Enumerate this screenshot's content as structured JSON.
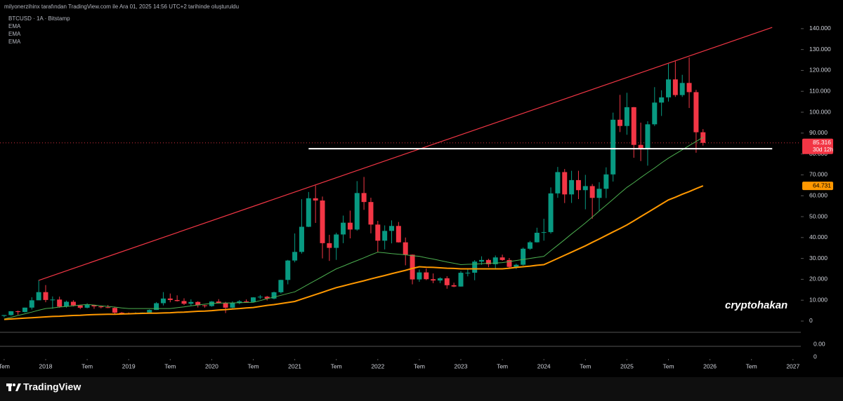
{
  "header": "milyonerzihinx tarafından TradingView.com ile Ara 01, 2025 14:56 UTC+2 tarihinde oluşturuldu",
  "footer_brand": "TradingView",
  "chart_data": {
    "type": "candlestick",
    "title": "BTCUSD · 1A · Bitstamp",
    "indicator_labels": [
      "EMA",
      "EMA",
      "EMA"
    ],
    "watermark": "cryptohakan",
    "up_color": "#089981",
    "down_color": "#f23645",
    "x": [
      "2017-07",
      "2017-08",
      "2017-09",
      "2017-10",
      "2017-11",
      "2017-12",
      "2018-01",
      "2018-02",
      "2018-03",
      "2018-04",
      "2018-05",
      "2018-06",
      "2018-07",
      "2018-08",
      "2018-09",
      "2018-10",
      "2018-11",
      "2018-12",
      "2019-01",
      "2019-02",
      "2019-03",
      "2019-04",
      "2019-05",
      "2019-06",
      "2019-07",
      "2019-08",
      "2019-09",
      "2019-10",
      "2019-11",
      "2019-12",
      "2020-01",
      "2020-02",
      "2020-03",
      "2020-04",
      "2020-05",
      "2020-06",
      "2020-07",
      "2020-08",
      "2020-09",
      "2020-10",
      "2020-11",
      "2020-12",
      "2021-01",
      "2021-02",
      "2021-03",
      "2021-04",
      "2021-05",
      "2021-06",
      "2021-07",
      "2021-08",
      "2021-09",
      "2021-10",
      "2021-11",
      "2021-12",
      "2022-01",
      "2022-02",
      "2022-03",
      "2022-04",
      "2022-05",
      "2022-06",
      "2022-07",
      "2022-08",
      "2022-09",
      "2022-10",
      "2022-11",
      "2022-12",
      "2023-01",
      "2023-02",
      "2023-03",
      "2023-04",
      "2023-05",
      "2023-06",
      "2023-07",
      "2023-08",
      "2023-09",
      "2023-10",
      "2023-11",
      "2023-12",
      "2024-01",
      "2024-02",
      "2024-03",
      "2024-04",
      "2024-05",
      "2024-06",
      "2024-07",
      "2024-08",
      "2024-09",
      "2024-10",
      "2024-11",
      "2024-12",
      "2025-01",
      "2025-02",
      "2025-03",
      "2025-04",
      "2025-05",
      "2025-06",
      "2025-07",
      "2025-08",
      "2025-09",
      "2025-10",
      "2025-11",
      "2025-12"
    ],
    "open": [
      2480,
      2870,
      4700,
      4340,
      6450,
      9950,
      13860,
      10100,
      10300,
      6920,
      9240,
      7500,
      6400,
      7730,
      7030,
      6630,
      6300,
      4020,
      3740,
      3460,
      3820,
      4100,
      5330,
      8560,
      10800,
      10080,
      9600,
      8300,
      9150,
      7550,
      7190,
      9350,
      8540,
      6420,
      8630,
      9450,
      9140,
      11350,
      11660,
      10780,
      13800,
      19700,
      28990,
      33110,
      45140,
      58800,
      57720,
      37300,
      35040,
      41460,
      47100,
      43820,
      61300,
      57000,
      46200,
      38480,
      43170,
      45540,
      37700,
      31800,
      19940,
      23300,
      20050,
      19430,
      20490,
      17170,
      16540,
      23130,
      23150,
      28470,
      29250,
      27220,
      30480,
      29230,
      25940,
      26960,
      34640,
      37720,
      42280,
      42580,
      61130,
      71330,
      60640,
      67490,
      62680,
      64620,
      58970,
      63330,
      70215,
      96400,
      93400,
      102400,
      84350,
      82550,
      94200,
      104600,
      107100,
      115700,
      108200,
      114000,
      109600,
      90400
    ],
    "high": [
      2900,
      4800,
      5000,
      6470,
      11400,
      19666,
      17250,
      11800,
      11700,
      9800,
      10000,
      7800,
      8500,
      7800,
      7410,
      7700,
      6600,
      4300,
      4120,
      4200,
      4130,
      5600,
      9090,
      13880,
      13200,
      12330,
      10900,
      10400,
      9500,
      7750,
      9580,
      10500,
      9200,
      9460,
      10070,
      10380,
      11440,
      12480,
      12070,
      14100,
      19800,
      29300,
      41950,
      58350,
      61800,
      64900,
      59600,
      41300,
      42300,
      50500,
      52900,
      67000,
      69000,
      59050,
      47990,
      45800,
      48200,
      47440,
      40000,
      31900,
      24670,
      25200,
      22800,
      21000,
      21480,
      18380,
      23960,
      25250,
      29190,
      31000,
      29840,
      31400,
      31800,
      30200,
      27490,
      35200,
      38400,
      44700,
      48970,
      64000,
      73800,
      72800,
      71950,
      71950,
      70000,
      65600,
      66500,
      73600,
      99800,
      108300,
      109300,
      102500,
      95000,
      95700,
      112000,
      110500,
      123200,
      124400,
      117900,
      126200,
      110700,
      91900
    ],
    "low": [
      1830,
      2580,
      2970,
      4110,
      5500,
      10700,
      9000,
      5900,
      6400,
      6430,
      7000,
      5760,
      6070,
      5880,
      6100,
      6200,
      3550,
      3120,
      3350,
      3380,
      3700,
      4080,
      5320,
      7480,
      9000,
      9360,
      7700,
      7300,
      6500,
      6430,
      6850,
      8450,
      3850,
      6160,
      8100,
      8900,
      8990,
      10520,
      9880,
      10400,
      13200,
      17600,
      28130,
      32300,
      45000,
      47000,
      30000,
      28800,
      29300,
      37300,
      39600,
      43300,
      53250,
      42000,
      32900,
      34300,
      37200,
      37600,
      26700,
      17600,
      18800,
      19600,
      18150,
      18200,
      15500,
      16250,
      16500,
      21400,
      19550,
      26950,
      25800,
      24800,
      28860,
      25400,
      24900,
      26550,
      34100,
      37600,
      38500,
      41880,
      59000,
      56500,
      56550,
      58400,
      53500,
      49000,
      52550,
      58900,
      66800,
      90500,
      89200,
      78200,
      76600,
      74400,
      93400,
      98200,
      105100,
      107300,
      107300,
      102000,
      80600,
      84000
    ],
    "close": [
      2870,
      4700,
      4340,
      6450,
      9950,
      13860,
      10100,
      10300,
      6920,
      9240,
      7500,
      6400,
      7730,
      7030,
      6630,
      6300,
      4020,
      3740,
      3460,
      3820,
      4100,
      5330,
      8560,
      10800,
      10080,
      9600,
      8300,
      9150,
      7550,
      7190,
      9350,
      8540,
      6420,
      8630,
      9450,
      9140,
      11350,
      11660,
      10780,
      13800,
      19700,
      28990,
      33110,
      45140,
      58800,
      57720,
      37300,
      35040,
      41460,
      47100,
      43820,
      61300,
      57000,
      46200,
      38480,
      43170,
      45540,
      37700,
      31800,
      19940,
      23300,
      20050,
      19430,
      20490,
      17170,
      16540,
      23130,
      23150,
      28470,
      29250,
      27220,
      30480,
      29230,
      25940,
      26960,
      34640,
      37720,
      42280,
      42580,
      61130,
      71330,
      60640,
      67490,
      62680,
      64620,
      58970,
      63330,
      70215,
      96400,
      93400,
      102400,
      84350,
      82550,
      94200,
      104600,
      107100,
      115700,
      108200,
      114000,
      109600,
      90400,
      85316
    ],
    "last_close_label": "85.316",
    "countdown": "30d 12h",
    "series": [
      {
        "color": "#4caf50",
        "values": [
          1000,
          1800,
          2700,
          3500,
          4300,
          5200,
          6000,
          6300,
          6700,
          7000,
          7300,
          7700,
          8000,
          7700,
          7300,
          7000,
          6700,
          6300,
          6000,
          6000,
          6000,
          6000,
          6000,
          6000,
          6000,
          6400,
          6800,
          7300,
          7700,
          8100,
          8500,
          8600,
          8700,
          8700,
          8800,
          8900,
          9000,
          9800,
          10700,
          11500,
          12300,
          13200,
          14000,
          15800,
          17700,
          19500,
          21300,
          23200,
          25000,
          26300,
          27700,
          29000,
          30300,
          31700,
          33000,
          32700,
          32300,
          32000,
          31700,
          31300,
          31000,
          30300,
          29700,
          29000,
          28300,
          27700,
          27000,
          27200,
          27300,
          27500,
          27700,
          27800,
          28000,
          28500,
          29000,
          29500,
          30000,
          30500,
          31000,
          33700,
          36300,
          39000,
          41700,
          44300,
          47000,
          49800,
          52700,
          55500,
          58300,
          61200,
          64000,
          66300,
          68700,
          71000,
          73300,
          75700,
          78000,
          80000,
          82000,
          84000,
          86000,
          88000
        ]
      },
      {
        "color": "#ff9800",
        "values": [
          800,
          1000,
          1200,
          1400,
          1600,
          1800,
          2000,
          2200,
          2300,
          2500,
          2700,
          2800,
          3000,
          3100,
          3200,
          3300,
          3300,
          3400,
          3500,
          3600,
          3700,
          3800,
          3800,
          3900,
          4000,
          4200,
          4300,
          4500,
          4700,
          4800,
          5000,
          5300,
          5500,
          5800,
          6000,
          6300,
          6500,
          7000,
          7500,
          7900,
          8400,
          8900,
          9400,
          10500,
          11600,
          12700,
          13800,
          14900,
          16000,
          16800,
          17700,
          18500,
          19300,
          20200,
          21000,
          21800,
          22700,
          23500,
          24300,
          25200,
          26000,
          25800,
          25700,
          25500,
          25300,
          25200,
          25000,
          25000,
          25000,
          25000,
          25000,
          25000,
          25000,
          25300,
          25700,
          26000,
          26300,
          26700,
          27000,
          28500,
          30000,
          31500,
          33000,
          34500,
          36000,
          37700,
          39300,
          41000,
          42700,
          44300,
          46000,
          48000,
          50000,
          52000,
          54000,
          56000,
          58000,
          59300,
          60700,
          62000,
          63400,
          64731
        ],
        "last_label": "64.731"
      }
    ],
    "lines": [
      {
        "color": "#f23645",
        "x": [
          "2017-12",
          "2026-10"
        ],
        "y": [
          19500,
          140600
        ]
      },
      {
        "color": "#ffffff",
        "x": [
          "2021-03",
          "2026-10"
        ],
        "y": [
          82500,
          82500
        ]
      }
    ],
    "ylim": [
      -4700,
      147000
    ],
    "yticks": [
      0,
      {
        "value": 10000,
        "label": "10.000"
      },
      {
        "value": 20000,
        "label": "20.000"
      },
      {
        "value": 30000,
        "label": "30.000"
      },
      {
        "value": 40000,
        "label": "40.000"
      },
      {
        "value": 50000,
        "label": "50.000"
      },
      {
        "value": 60000,
        "label": "60.000"
      },
      {
        "value": 70000,
        "label": "70.000"
      },
      {
        "value": 80000,
        "label": "80.000"
      },
      {
        "value": 90000,
        "label": "90.000"
      },
      {
        "value": 100000,
        "label": "100.000"
      },
      {
        "value": 110000,
        "label": "110.000"
      },
      {
        "value": 120000,
        "label": "120.000"
      },
      {
        "value": 130000,
        "label": "130.000"
      },
      {
        "value": 140000,
        "label": "140.000"
      }
    ],
    "xticks": [
      {
        "value": "2017-07",
        "label": "Tem"
      },
      {
        "value": "2018-01",
        "label": "2018"
      },
      {
        "value": "2018-07",
        "label": "Tem"
      },
      {
        "value": "2019-01",
        "label": "2019"
      },
      {
        "value": "2019-07",
        "label": "Tem"
      },
      {
        "value": "2020-01",
        "label": "2020"
      },
      {
        "value": "2020-07",
        "label": "Tem"
      },
      {
        "value": "2021-01",
        "label": "2021"
      },
      {
        "value": "2021-07",
        "label": "Tem"
      },
      {
        "value": "2022-01",
        "label": "2022"
      },
      {
        "value": "2022-07",
        "label": "Tem"
      },
      {
        "value": "2023-01",
        "label": "2023"
      },
      {
        "value": "2023-07",
        "label": "Tem"
      },
      {
        "value": "2024-01",
        "label": "2024"
      },
      {
        "value": "2024-07",
        "label": "Tem"
      },
      {
        "value": "2025-01",
        "label": "2025"
      },
      {
        "value": "2025-07",
        "label": "Tem"
      },
      {
        "value": "2026-01",
        "label": "2026"
      },
      {
        "value": "2026-07",
        "label": "Tem"
      },
      {
        "value": "2027-01",
        "label": "2027"
      }
    ],
    "lower_pane_labels": [
      "0.00",
      "0"
    ]
  }
}
